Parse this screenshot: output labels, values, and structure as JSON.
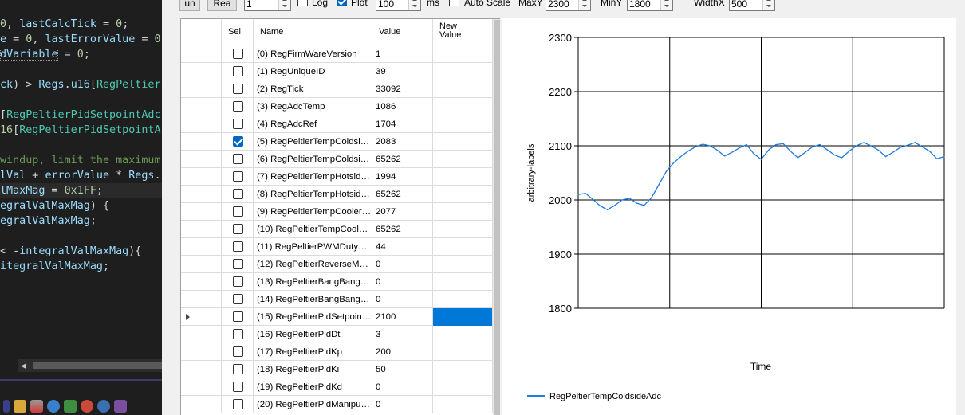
{
  "editor": {
    "lines": [
      [
        {
          "t": "0",
          "c": "num"
        },
        {
          "t": ", ",
          "c": "pl"
        },
        {
          "t": "lastCalcTick",
          "c": "var"
        },
        {
          "t": " = ",
          "c": "pl"
        },
        {
          "t": "0",
          "c": "num"
        },
        {
          "t": ";",
          "c": "pl"
        }
      ],
      [
        {
          "t": "e",
          "c": "var"
        },
        {
          "t": " = ",
          "c": "pl"
        },
        {
          "t": "0",
          "c": "num"
        },
        {
          "t": ", ",
          "c": "pl"
        },
        {
          "t": "lastErrorValue",
          "c": "var"
        },
        {
          "t": " = ",
          "c": "pl"
        },
        {
          "t": "0",
          "c": "num"
        }
      ],
      [
        {
          "t": "dVariable",
          "c": "var box"
        },
        {
          "t": " = ",
          "c": "pl"
        },
        {
          "t": "0",
          "c": "num"
        },
        {
          "t": ";",
          "c": "pl"
        }
      ],
      [],
      [
        {
          "t": "ck",
          "c": "var"
        },
        {
          "t": ") > ",
          "c": "pl"
        },
        {
          "t": "Regs",
          "c": "var"
        },
        {
          "t": ".",
          "c": "pl"
        },
        {
          "t": "u16",
          "c": "var"
        },
        {
          "t": "[",
          "c": "pl"
        },
        {
          "t": "RegPeltier",
          "c": "typ"
        }
      ],
      [],
      [
        {
          "t": "[",
          "c": "pl"
        },
        {
          "t": "RegPeltierPidSetpointAdc",
          "c": "typ"
        }
      ],
      [
        {
          "t": "16",
          "c": "num"
        },
        {
          "t": "[",
          "c": "pl"
        },
        {
          "t": "RegPeltierPidSetpointA",
          "c": "typ"
        }
      ],
      [],
      [
        {
          "t": "windup, limit the maximum",
          "c": "com"
        }
      ],
      [
        {
          "t": "lVal",
          "c": "var"
        },
        {
          "t": " + ",
          "c": "pl"
        },
        {
          "t": "errorValue",
          "c": "var"
        },
        {
          "t": " * ",
          "c": "pl"
        },
        {
          "t": "Regs",
          "c": "var"
        },
        {
          "t": ".",
          "c": "pl"
        }
      ],
      [
        {
          "t": "lMaxMag",
          "c": "var"
        },
        {
          "t": " = ",
          "c": "pl"
        },
        {
          "t": "0x1FF",
          "c": "num"
        },
        {
          "t": ";",
          "c": "pl"
        }
      ],
      [
        {
          "t": "egralValMaxMag",
          "c": "var"
        },
        {
          "t": ") {",
          "c": "pl"
        }
      ],
      [
        {
          "t": "egralValMaxMag",
          "c": "var"
        },
        {
          "t": ";",
          "c": "pl"
        }
      ],
      [],
      [
        {
          "t": "< -",
          "c": "pl"
        },
        {
          "t": "integralValMaxMag",
          "c": "var"
        },
        {
          "t": "){",
          "c": "pl"
        }
      ],
      [
        {
          "t": "itegralValMaxMag",
          "c": "var"
        },
        {
          "t": ";",
          "c": "pl"
        }
      ]
    ],
    "highlight_line": 11,
    "hscroll_left_icon": "scroll-left-icon",
    "taskbar_icons": [
      "solution-icon",
      "folder-icon",
      "debug-icon",
      "refresh-icon",
      "device-icon",
      "bug-icon",
      "find-icon",
      "build-icon"
    ]
  },
  "toolbar": {
    "run_label": "un",
    "read_label": "Rea",
    "interval_value": "1",
    "log_label": "Log",
    "log_checked": false,
    "plot_label": "Plot",
    "plot_checked": true,
    "period_value": "100",
    "period_unit": "ms",
    "autoscale_label": "Auto Scale",
    "autoscale_checked": false,
    "maxy_label": "MaxY",
    "maxy_value": "2300",
    "miny_label": "MinY",
    "miny_value": "1800",
    "widthx_label": "WidthX",
    "widthx_value": "500"
  },
  "grid": {
    "columns": {
      "sel": "Sel",
      "name": "Name",
      "value": "Value",
      "new_value": "New\nValue"
    },
    "current_row": 15,
    "rows": [
      {
        "name": "(0) RegFirmWareVersion",
        "value": "1",
        "sel": false,
        "new": ""
      },
      {
        "name": "(1) RegUniqueID",
        "value": "39",
        "sel": false,
        "new": ""
      },
      {
        "name": "(2) RegTick",
        "value": "33092",
        "sel": false,
        "new": ""
      },
      {
        "name": "(3) RegAdcTemp",
        "value": "1086",
        "sel": false,
        "new": ""
      },
      {
        "name": "(4) RegAdcRef",
        "value": "1704",
        "sel": false,
        "new": ""
      },
      {
        "name": "(5) RegPeltierTempColdside...",
        "value": "2083",
        "sel": true,
        "new": ""
      },
      {
        "name": "(6) RegPeltierTempColdside...",
        "value": "65262",
        "sel": false,
        "new": ""
      },
      {
        "name": "(7) RegPeltierTempHotside...",
        "value": "1994",
        "sel": false,
        "new": ""
      },
      {
        "name": "(8) RegPeltierTempHotside...",
        "value": "65262",
        "sel": false,
        "new": ""
      },
      {
        "name": "(9) RegPeltierTempCoolerB...",
        "value": "2077",
        "sel": false,
        "new": ""
      },
      {
        "name": "(10) RegPeltierTempCooler...",
        "value": "65262",
        "sel": false,
        "new": ""
      },
      {
        "name": "(11) RegPeltierPWMDutyCy...",
        "value": "44",
        "sel": false,
        "new": ""
      },
      {
        "name": "(12) RegPeltierReverseMode",
        "value": "0",
        "sel": false,
        "new": ""
      },
      {
        "name": "(13) RegPeltierBangBangTe...",
        "value": "0",
        "sel": false,
        "new": ""
      },
      {
        "name": "(14) RegPeltierBangBangTe...",
        "value": "0",
        "sel": false,
        "new": ""
      },
      {
        "name": "(15) RegPeltierPidSetpointA...",
        "value": "2100",
        "sel": false,
        "new": ""
      },
      {
        "name": "(16) RegPeltierPidDt",
        "value": "3",
        "sel": false,
        "new": ""
      },
      {
        "name": "(17) RegPeltierPidKp",
        "value": "200",
        "sel": false,
        "new": ""
      },
      {
        "name": "(18) RegPeltierPidKi",
        "value": "50",
        "sel": false,
        "new": ""
      },
      {
        "name": "(19) RegPeltierPidKd",
        "value": "0",
        "sel": false,
        "new": ""
      },
      {
        "name": "(20) RegPeltierPidManipulat...",
        "value": "0",
        "sel": false,
        "new": ""
      }
    ]
  },
  "chart_data": {
    "type": "line",
    "xlabel": "Time",
    "ylabel": "arbitrary-labels",
    "ylim": [
      1800,
      2300
    ],
    "yticks": [
      1800,
      1900,
      2000,
      2100,
      2200,
      2300
    ],
    "grid": true,
    "legend_position": "bottom-left",
    "series": [
      {
        "name": "RegPeltierTempColdsideAdc",
        "color": "#1e7be0",
        "x": [
          0,
          10,
          20,
          30,
          40,
          50,
          60,
          70,
          80,
          90,
          100,
          110,
          120,
          130,
          140,
          150,
          160,
          170,
          180,
          190,
          200,
          210,
          220,
          230,
          240,
          250,
          260,
          270,
          280,
          290,
          300,
          310,
          320,
          330,
          340,
          350,
          360,
          370,
          380,
          390,
          400,
          410,
          420,
          430,
          440,
          450,
          460,
          470,
          480,
          490,
          500
        ],
        "y": [
          2010,
          2012,
          2001,
          1989,
          1982,
          1990,
          2000,
          2003,
          1994,
          1990,
          2004,
          2028,
          2052,
          2068,
          2080,
          2090,
          2098,
          2103,
          2100,
          2092,
          2081,
          2088,
          2096,
          2102,
          2085,
          2075,
          2092,
          2102,
          2104,
          2090,
          2078,
          2088,
          2098,
          2102,
          2093,
          2083,
          2078,
          2090,
          2100,
          2106,
          2100,
          2092,
          2080,
          2088,
          2097,
          2101,
          2106,
          2098,
          2090,
          2076,
          2080
        ]
      }
    ]
  }
}
